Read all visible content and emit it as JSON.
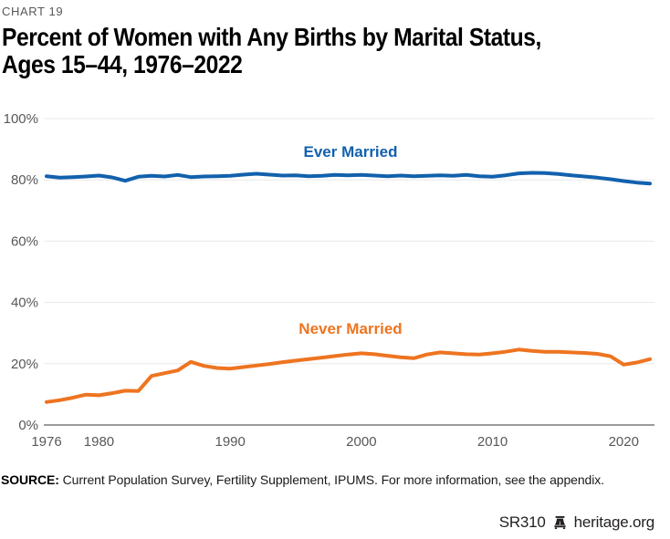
{
  "eyebrow": "CHART 19",
  "title_line1": "Percent of Women with Any Births by Marital Status,",
  "title_line2": "Ages 15–44, 1976–2022",
  "source": {
    "label": "SOURCE:",
    "text": " Current Population Survey, Fertility Supplement, IPUMS. For more information, see the appendix."
  },
  "footer": {
    "doc_id": "SR310",
    "logo_icon": "liberty-bell-icon",
    "site": "heritage.org"
  },
  "chart_data": {
    "type": "line",
    "title": "Percent of Women with Any Births by Marital Status, Ages 15–44, 1976–2022",
    "xlabel": "",
    "ylabel": "",
    "ylim": [
      0,
      100
    ],
    "yticks": [
      0,
      20,
      40,
      60,
      80,
      100
    ],
    "ytick_labels": [
      "0%",
      "20%",
      "40%",
      "60%",
      "80%",
      "100%"
    ],
    "xticks": [
      1976,
      1980,
      1990,
      2000,
      2010,
      2020
    ],
    "grid": "horizontal",
    "legend": "inline-labels",
    "x": [
      1976,
      1977,
      1978,
      1979,
      1980,
      1981,
      1982,
      1983,
      1984,
      1985,
      1986,
      1987,
      1988,
      1989,
      1990,
      1991,
      1992,
      1993,
      1994,
      1995,
      1996,
      1997,
      1998,
      1999,
      2000,
      2001,
      2002,
      2003,
      2004,
      2005,
      2006,
      2007,
      2008,
      2009,
      2010,
      2011,
      2012,
      2013,
      2014,
      2015,
      2016,
      2017,
      2018,
      2019,
      2020,
      2021,
      2022
    ],
    "series": [
      {
        "name": "Ever Married",
        "color": "#1261AD",
        "values": [
          81.2,
          80.7,
          80.9,
          81.1,
          81.4,
          80.8,
          79.7,
          81.0,
          81.3,
          81.1,
          81.6,
          80.9,
          81.1,
          81.2,
          81.3,
          81.7,
          82.0,
          81.7,
          81.4,
          81.5,
          81.2,
          81.3,
          81.6,
          81.5,
          81.6,
          81.4,
          81.2,
          81.4,
          81.2,
          81.3,
          81.5,
          81.3,
          81.6,
          81.2,
          81.0,
          81.5,
          82.1,
          82.3,
          82.2,
          81.9,
          81.5,
          81.1,
          80.7,
          80.2,
          79.6,
          79.1,
          78.8
        ]
      },
      {
        "name": "Never Married",
        "color": "#EE7420",
        "values": [
          7.5,
          8.1,
          8.9,
          9.9,
          9.7,
          10.4,
          11.2,
          11.1,
          16.0,
          16.9,
          17.8,
          20.6,
          19.3,
          18.6,
          18.4,
          18.9,
          19.4,
          19.9,
          20.5,
          21.0,
          21.5,
          22.0,
          22.5,
          23.0,
          23.4,
          23.1,
          22.6,
          22.1,
          21.8,
          23.0,
          23.7,
          23.4,
          23.1,
          23.0,
          23.4,
          23.9,
          24.6,
          24.2,
          23.9,
          23.9,
          23.7,
          23.5,
          23.2,
          22.4,
          19.7,
          20.4,
          21.5
        ]
      }
    ],
    "colors": {
      "grid": "#E8E8E8",
      "axis": "#9B9B9B",
      "tick_text": "#58585A"
    }
  }
}
